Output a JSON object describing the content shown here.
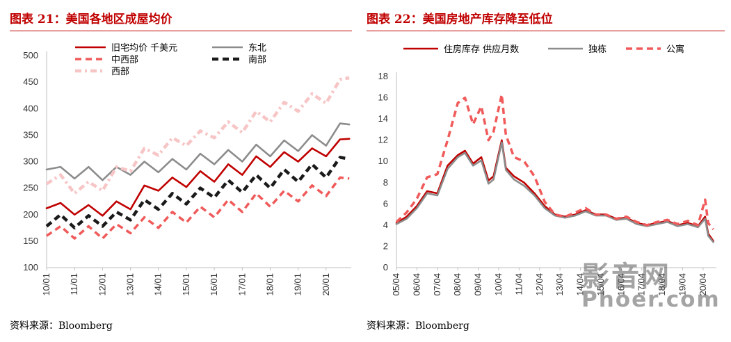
{
  "charts": [
    {
      "title": "图表 21：美国各地区成屋均价",
      "source": "资料来源：Bloomberg"
    },
    {
      "title": "图表 22：美国房地产库存降至低位",
      "source": "资料来源：Bloomberg"
    }
  ],
  "watermark": {
    "cn": "影音网",
    "en": "Phoer.com"
  },
  "chart_data": [
    {
      "type": "line",
      "title": "",
      "xlabel": "",
      "ylabel": "",
      "ylim": [
        100,
        500
      ],
      "yticks": [
        "100",
        "150",
        "200",
        "250",
        "300",
        "350",
        "400",
        "450",
        "500"
      ],
      "xticks": [
        "10/01",
        "11/01",
        "12/01",
        "13/01",
        "14/01",
        "15/01",
        "16/01",
        "17/01",
        "18/01",
        "19/01",
        "20/01"
      ],
      "x_range": [
        2010.0,
        2020.9
      ],
      "legend_position": "top",
      "series": [
        {
          "name": "旧宅均价 千美元",
          "color": "#c00000",
          "style": "solid",
          "width": 2.6,
          "x": [
            2010.0,
            2010.5,
            2011.0,
            2011.5,
            2012.0,
            2012.5,
            2013.0,
            2013.5,
            2014.0,
            2014.5,
            2015.0,
            2015.5,
            2016.0,
            2016.5,
            2017.0,
            2017.5,
            2018.0,
            2018.5,
            2019.0,
            2019.5,
            2020.0,
            2020.5,
            2020.83
          ],
          "y": [
            212,
            222,
            200,
            218,
            198,
            225,
            210,
            255,
            245,
            270,
            252,
            282,
            262,
            295,
            275,
            310,
            290,
            318,
            300,
            325,
            310,
            342,
            343
          ]
        },
        {
          "name": "东北",
          "color": "#8c8c8c",
          "style": "solid",
          "width": 2.6,
          "x": [
            2010.0,
            2010.5,
            2011.0,
            2011.5,
            2012.0,
            2012.5,
            2013.0,
            2013.5,
            2014.0,
            2014.5,
            2015.0,
            2015.5,
            2016.0,
            2016.5,
            2017.0,
            2017.5,
            2018.0,
            2018.5,
            2019.0,
            2019.5,
            2020.0,
            2020.5,
            2020.83
          ],
          "y": [
            285,
            290,
            268,
            290,
            265,
            290,
            275,
            300,
            280,
            305,
            285,
            315,
            295,
            322,
            300,
            332,
            310,
            340,
            320,
            350,
            330,
            372,
            370
          ]
        },
        {
          "name": "中西部",
          "color": "#f05a5a",
          "style": "dash",
          "width": 3.5,
          "x": [
            2010.0,
            2010.5,
            2011.0,
            2011.5,
            2012.0,
            2012.5,
            2013.0,
            2013.5,
            2014.0,
            2014.5,
            2015.0,
            2015.5,
            2016.0,
            2016.5,
            2017.0,
            2017.5,
            2018.0,
            2018.5,
            2019.0,
            2019.5,
            2020.0,
            2020.5,
            2020.83
          ],
          "y": [
            160,
            178,
            155,
            178,
            155,
            182,
            165,
            195,
            175,
            205,
            185,
            215,
            195,
            228,
            205,
            240,
            215,
            245,
            225,
            255,
            235,
            270,
            268
          ]
        },
        {
          "name": "南部",
          "color": "#1a1a1a",
          "style": "dash",
          "width": 4.5,
          "x": [
            2010.0,
            2010.5,
            2011.0,
            2011.5,
            2012.0,
            2012.5,
            2013.0,
            2013.5,
            2014.0,
            2014.5,
            2015.0,
            2015.5,
            2016.0,
            2016.5,
            2017.0,
            2017.5,
            2018.0,
            2018.5,
            2019.0,
            2019.5,
            2020.0,
            2020.5,
            2020.83
          ],
          "y": [
            178,
            200,
            175,
            198,
            178,
            205,
            190,
            228,
            210,
            240,
            220,
            250,
            232,
            265,
            242,
            275,
            250,
            285,
            262,
            295,
            270,
            308,
            305
          ]
        },
        {
          "name": "西部",
          "color": "#f7c5c5",
          "style": "dashdot",
          "width": 4.5,
          "x": [
            2010.0,
            2010.5,
            2011.0,
            2011.5,
            2012.0,
            2012.5,
            2013.0,
            2013.5,
            2014.0,
            2014.5,
            2015.0,
            2015.5,
            2016.0,
            2016.5,
            2017.0,
            2017.5,
            2018.0,
            2018.5,
            2019.0,
            2019.5,
            2020.0,
            2020.5,
            2020.83
          ],
          "y": [
            258,
            275,
            240,
            262,
            245,
            290,
            282,
            325,
            312,
            345,
            330,
            358,
            345,
            375,
            355,
            395,
            375,
            412,
            395,
            428,
            410,
            455,
            458
          ]
        }
      ]
    },
    {
      "type": "line",
      "title": "",
      "xlabel": "",
      "ylabel": "",
      "ylim": [
        0,
        18
      ],
      "yticks": [
        "0",
        "2",
        "4",
        "6",
        "8",
        "10",
        "12",
        "14",
        "16",
        "18"
      ],
      "xticks": [
        "05/04",
        "06/04",
        "07/04",
        "08/04",
        "09/04",
        "10/04",
        "11/04",
        "12/04",
        "13/04",
        "14/04",
        "15/04",
        "16/04",
        "17/04",
        "18/04",
        "19/04",
        "20/04"
      ],
      "x_range": [
        2005.25,
        2020.9
      ],
      "legend_position": "top",
      "series": [
        {
          "name": "住房库存 供应月数",
          "color": "#c00000",
          "style": "solid",
          "width": 2.6,
          "x": [
            2005.25,
            2005.75,
            2006.25,
            2006.75,
            2007.25,
            2007.75,
            2008.25,
            2008.6,
            2009.0,
            2009.4,
            2009.75,
            2010.0,
            2010.4,
            2010.6,
            2011.0,
            2011.5,
            2012.0,
            2012.5,
            2013.0,
            2013.5,
            2014.0,
            2014.5,
            2015.0,
            2015.5,
            2016.0,
            2016.5,
            2017.0,
            2017.5,
            2018.0,
            2018.5,
            2019.0,
            2019.5,
            2020.0,
            2020.35,
            2020.5,
            2020.75
          ],
          "y": [
            4.2,
            4.8,
            5.8,
            7.2,
            7.0,
            9.6,
            10.6,
            11.0,
            9.8,
            10.4,
            8.2,
            8.6,
            12.0,
            9.4,
            8.6,
            8.0,
            7.0,
            5.8,
            5.0,
            4.8,
            5.0,
            5.4,
            5.0,
            5.0,
            4.6,
            4.7,
            4.2,
            4.0,
            4.2,
            4.4,
            4.0,
            4.2,
            3.9,
            4.8,
            3.2,
            2.5
          ]
        },
        {
          "name": "独栋",
          "color": "#8c8c8c",
          "style": "solid",
          "width": 2.6,
          "x": [
            2005.25,
            2005.75,
            2006.25,
            2006.75,
            2007.25,
            2007.75,
            2008.25,
            2008.6,
            2009.0,
            2009.4,
            2009.75,
            2010.0,
            2010.4,
            2010.6,
            2011.0,
            2011.5,
            2012.0,
            2012.5,
            2013.0,
            2013.5,
            2014.0,
            2014.5,
            2015.0,
            2015.5,
            2016.0,
            2016.5,
            2017.0,
            2017.5,
            2018.0,
            2018.5,
            2019.0,
            2019.5,
            2020.0,
            2020.35,
            2020.5,
            2020.75
          ],
          "y": [
            4.1,
            4.6,
            5.6,
            7.0,
            6.8,
            9.3,
            10.4,
            10.8,
            9.6,
            10.1,
            7.9,
            8.3,
            11.8,
            9.2,
            8.3,
            7.7,
            6.8,
            5.6,
            4.9,
            4.7,
            4.9,
            5.3,
            4.9,
            4.9,
            4.5,
            4.6,
            4.1,
            3.9,
            4.1,
            4.3,
            3.9,
            4.1,
            3.8,
            4.6,
            3.0,
            2.4
          ]
        },
        {
          "name": "公寓",
          "color": "#f05a5a",
          "style": "dash",
          "width": 3.5,
          "x": [
            2005.25,
            2005.75,
            2006.25,
            2006.75,
            2007.25,
            2007.75,
            2008.25,
            2008.6,
            2009.0,
            2009.4,
            2009.75,
            2010.0,
            2010.4,
            2010.6,
            2011.0,
            2011.5,
            2012.0,
            2012.5,
            2013.0,
            2013.5,
            2014.0,
            2014.5,
            2015.0,
            2015.5,
            2016.0,
            2016.5,
            2017.0,
            2017.5,
            2018.0,
            2018.5,
            2019.0,
            2019.5,
            2020.0,
            2020.35,
            2020.5,
            2020.75
          ],
          "y": [
            4.3,
            5.2,
            6.5,
            8.5,
            8.8,
            12.0,
            15.5,
            16.0,
            13.5,
            15.2,
            12.0,
            12.8,
            16.3,
            12.5,
            10.4,
            10.0,
            8.6,
            6.2,
            5.0,
            4.8,
            5.2,
            5.6,
            5.0,
            5.0,
            4.6,
            4.8,
            4.3,
            4.0,
            4.3,
            4.5,
            4.1,
            4.4,
            4.0,
            6.4,
            4.2,
            3.6
          ]
        }
      ]
    }
  ]
}
